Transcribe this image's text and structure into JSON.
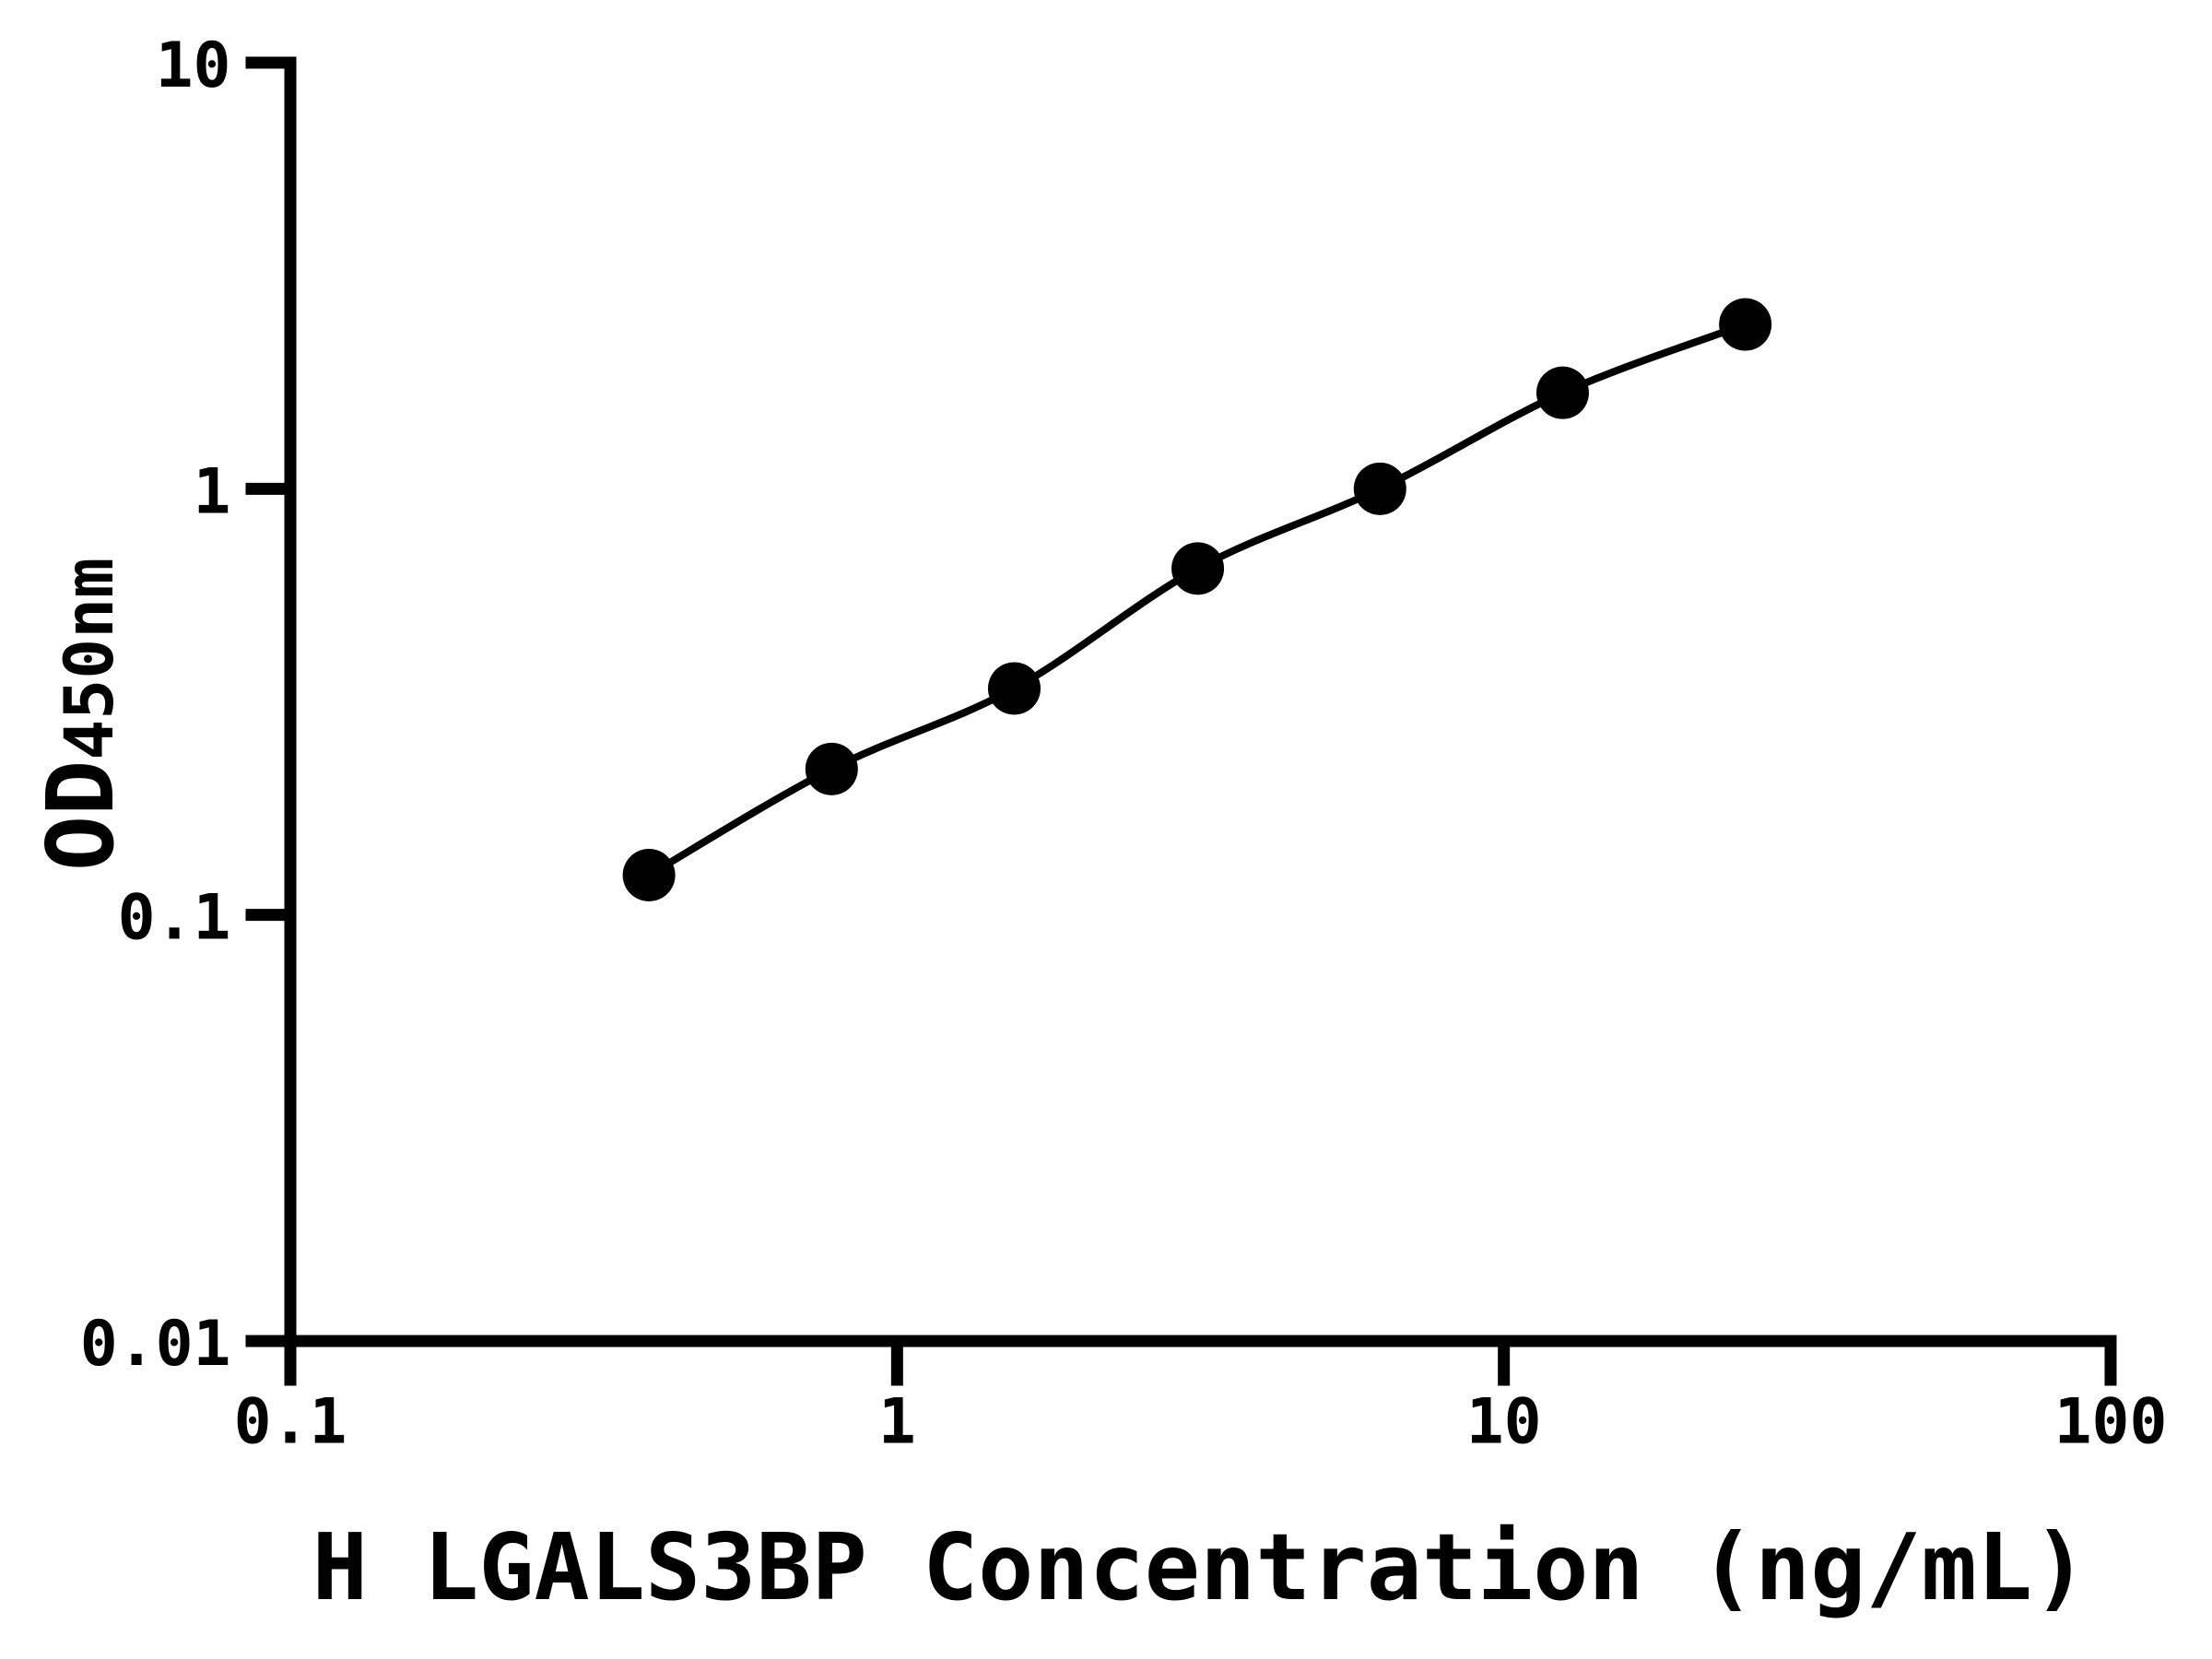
{
  "figure": {
    "background_color": "#ffffff",
    "foreground_color": "#000000"
  },
  "chart_data": {
    "type": "scatter",
    "title": "",
    "xlabel": "H LGALS3BP Concentration (ng/mL)",
    "ylabel": "OD450nm",
    "ylabel_main": "OD",
    "ylabel_sub": "450nm",
    "x_scale": "log",
    "y_scale": "log",
    "xlim": [
      0.1,
      100
    ],
    "ylim": [
      0.01,
      10
    ],
    "grid": false,
    "legend_position": "none",
    "x_ticks": [
      {
        "value": 0.1,
        "label": "0.1"
      },
      {
        "value": 1,
        "label": "1"
      },
      {
        "value": 10,
        "label": "10"
      },
      {
        "value": 100,
        "label": "100"
      }
    ],
    "y_ticks": [
      {
        "value": 10,
        "label": "10"
      },
      {
        "value": 1,
        "label": "1"
      },
      {
        "value": 0.1,
        "label": "0.1"
      },
      {
        "value": 0.01,
        "label": "0.01"
      }
    ],
    "series": [
      {
        "marker": "filled-circle",
        "marker_color": "#000000",
        "line_color": "#000000",
        "points": [
          {
            "x": 0.39,
            "y": 0.124
          },
          {
            "x": 0.78,
            "y": 0.22
          },
          {
            "x": 1.56,
            "y": 0.34
          },
          {
            "x": 3.13,
            "y": 0.65
          },
          {
            "x": 6.25,
            "y": 1.0
          },
          {
            "x": 12.5,
            "y": 1.68
          },
          {
            "x": 25,
            "y": 2.43
          }
        ]
      }
    ]
  }
}
